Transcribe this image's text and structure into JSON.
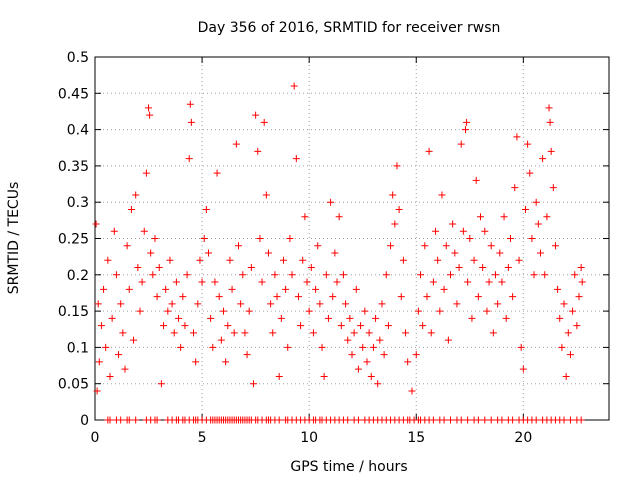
{
  "chart_data": {
    "type": "scatter",
    "title": "Day 356 of 2016, SRMTID for receiver rwsn",
    "xlabel": "GPS time / hours",
    "ylabel": "SRMTID / TECUs",
    "xlim": [
      0,
      24
    ],
    "ylim": [
      0,
      0.5
    ],
    "xticks": [
      0,
      5,
      10,
      15,
      20
    ],
    "xtick_labels": [
      "0",
      "5",
      "10",
      "15",
      "20"
    ],
    "yticks": [
      0,
      0.05,
      0.1,
      0.15,
      0.2,
      0.25,
      0.3,
      0.35,
      0.4,
      0.45,
      0.5
    ],
    "ytick_labels": [
      "0",
      "0.05",
      "0.1",
      "0.15",
      "0.2",
      "0.25",
      "0.3",
      "0.35",
      "0.4",
      "0.45",
      "0.5"
    ],
    "grid": true,
    "marker": "+",
    "color": "#ff0000",
    "series": [
      {
        "name": "SRMTID",
        "points": [
          [
            0.05,
            0.27
          ],
          [
            0.1,
            0.04
          ],
          [
            0.15,
            0.16
          ],
          [
            0.2,
            0.08
          ],
          [
            0.3,
            0.13
          ],
          [
            0.4,
            0.18
          ],
          [
            0.5,
            0.1
          ],
          [
            0.6,
            0.22
          ],
          [
            0.7,
            0.06
          ],
          [
            0.8,
            0.14
          ],
          [
            0.9,
            0.26
          ],
          [
            1.0,
            0.2
          ],
          [
            1.1,
            0.09
          ],
          [
            1.2,
            0.16
          ],
          [
            1.3,
            0.12
          ],
          [
            1.4,
            0.07
          ],
          [
            1.5,
            0.24
          ],
          [
            1.6,
            0.18
          ],
          [
            1.7,
            0.29
          ],
          [
            1.8,
            0.11
          ],
          [
            1.9,
            0.31
          ],
          [
            2.0,
            0.21
          ],
          [
            2.1,
            0.15
          ],
          [
            2.2,
            0.19
          ],
          [
            2.3,
            0.26
          ],
          [
            2.4,
            0.34
          ],
          [
            2.5,
            0.43
          ],
          [
            2.55,
            0.42
          ],
          [
            2.6,
            0.23
          ],
          [
            2.7,
            0.2
          ],
          [
            2.8,
            0.25
          ],
          [
            2.9,
            0.17
          ],
          [
            3.0,
            0.21
          ],
          [
            3.1,
            0.05
          ],
          [
            3.2,
            0.13
          ],
          [
            3.3,
            0.18
          ],
          [
            3.4,
            0.15
          ],
          [
            3.5,
            0.22
          ],
          [
            3.6,
            0.16
          ],
          [
            3.7,
            0.12
          ],
          [
            3.8,
            0.19
          ],
          [
            3.9,
            0.14
          ],
          [
            4.0,
            0.1
          ],
          [
            4.1,
            0.17
          ],
          [
            4.2,
            0.13
          ],
          [
            4.3,
            0.2
          ],
          [
            4.4,
            0.36
          ],
          [
            4.45,
            0.435
          ],
          [
            4.5,
            0.41
          ],
          [
            4.6,
            0.12
          ],
          [
            4.7,
            0.08
          ],
          [
            4.8,
            0.16
          ],
          [
            4.9,
            0.22
          ],
          [
            5.0,
            0.19
          ],
          [
            5.1,
            0.25
          ],
          [
            5.2,
            0.29
          ],
          [
            5.3,
            0.23
          ],
          [
            5.4,
            0.14
          ],
          [
            5.5,
            0.1
          ],
          [
            5.6,
            0.19
          ],
          [
            5.7,
            0.34
          ],
          [
            5.8,
            0.17
          ],
          [
            5.9,
            0.11
          ],
          [
            6.0,
            0.15
          ],
          [
            6.1,
            0.08
          ],
          [
            6.2,
            0.13
          ],
          [
            6.3,
            0.22
          ],
          [
            6.4,
            0.18
          ],
          [
            6.5,
            0.12
          ],
          [
            6.6,
            0.38
          ],
          [
            6.7,
            0.24
          ],
          [
            6.8,
            0.16
          ],
          [
            6.9,
            0.2
          ],
          [
            7.0,
            0.12
          ],
          [
            7.1,
            0.09
          ],
          [
            7.2,
            0.15
          ],
          [
            7.3,
            0.21
          ],
          [
            7.4,
            0.05
          ],
          [
            7.5,
            0.42
          ],
          [
            7.6,
            0.37
          ],
          [
            7.7,
            0.25
          ],
          [
            7.8,
            0.19
          ],
          [
            7.9,
            0.41
          ],
          [
            8.0,
            0.31
          ],
          [
            8.1,
            0.23
          ],
          [
            8.2,
            0.16
          ],
          [
            8.3,
            0.12
          ],
          [
            8.4,
            0.2
          ],
          [
            8.5,
            0.17
          ],
          [
            8.6,
            0.06
          ],
          [
            8.7,
            0.14
          ],
          [
            8.8,
            0.22
          ],
          [
            8.9,
            0.18
          ],
          [
            9.0,
            0.1
          ],
          [
            9.1,
            0.25
          ],
          [
            9.2,
            0.2
          ],
          [
            9.3,
            0.46
          ],
          [
            9.4,
            0.36
          ],
          [
            9.5,
            0.17
          ],
          [
            9.6,
            0.13
          ],
          [
            9.7,
            0.22
          ],
          [
            9.8,
            0.28
          ],
          [
            9.9,
            0.19
          ],
          [
            10.0,
            0.15
          ],
          [
            10.1,
            0.21
          ],
          [
            10.2,
            0.12
          ],
          [
            10.3,
            0.18
          ],
          [
            10.4,
            0.24
          ],
          [
            10.5,
            0.16
          ],
          [
            10.6,
            0.1
          ],
          [
            10.7,
            0.06
          ],
          [
            10.8,
            0.2
          ],
          [
            10.9,
            0.14
          ],
          [
            11.0,
            0.3
          ],
          [
            11.1,
            0.17
          ],
          [
            11.2,
            0.23
          ],
          [
            11.3,
            0.19
          ],
          [
            11.4,
            0.28
          ],
          [
            11.5,
            0.13
          ],
          [
            11.6,
            0.2
          ],
          [
            11.7,
            0.16
          ],
          [
            11.8,
            0.11
          ],
          [
            11.9,
            0.14
          ],
          [
            12.0,
            0.09
          ],
          [
            12.1,
            0.12
          ],
          [
            12.2,
            0.18
          ],
          [
            12.3,
            0.07
          ],
          [
            12.4,
            0.13
          ],
          [
            12.5,
            0.1
          ],
          [
            12.6,
            0.15
          ],
          [
            12.7,
            0.08
          ],
          [
            12.8,
            0.12
          ],
          [
            12.9,
            0.06
          ],
          [
            13.0,
            0.1
          ],
          [
            13.1,
            0.14
          ],
          [
            13.2,
            0.05
          ],
          [
            13.3,
            0.11
          ],
          [
            13.4,
            0.16
          ],
          [
            13.5,
            0.09
          ],
          [
            13.6,
            0.2
          ],
          [
            13.7,
            0.13
          ],
          [
            13.8,
            0.24
          ],
          [
            13.9,
            0.31
          ],
          [
            14.0,
            0.27
          ],
          [
            14.1,
            0.35
          ],
          [
            14.2,
            0.29
          ],
          [
            14.3,
            0.17
          ],
          [
            14.4,
            0.22
          ],
          [
            14.5,
            0.12
          ],
          [
            14.6,
            0.08
          ],
          [
            14.8,
            0.04
          ],
          [
            15.0,
            0.09
          ],
          [
            15.1,
            0.15
          ],
          [
            15.2,
            0.2
          ],
          [
            15.3,
            0.13
          ],
          [
            15.4,
            0.24
          ],
          [
            15.5,
            0.17
          ],
          [
            15.6,
            0.37
          ],
          [
            15.7,
            0.12
          ],
          [
            15.8,
            0.19
          ],
          [
            15.9,
            0.26
          ],
          [
            16.0,
            0.22
          ],
          [
            16.1,
            0.15
          ],
          [
            16.2,
            0.31
          ],
          [
            16.3,
            0.18
          ],
          [
            16.4,
            0.24
          ],
          [
            16.5,
            0.11
          ],
          [
            16.6,
            0.2
          ],
          [
            16.7,
            0.27
          ],
          [
            16.8,
            0.23
          ],
          [
            16.9,
            0.16
          ],
          [
            17.0,
            0.21
          ],
          [
            17.1,
            0.38
          ],
          [
            17.2,
            0.26
          ],
          [
            17.3,
            0.4
          ],
          [
            17.35,
            0.41
          ],
          [
            17.4,
            0.19
          ],
          [
            17.5,
            0.25
          ],
          [
            17.6,
            0.14
          ],
          [
            17.7,
            0.22
          ],
          [
            17.8,
            0.33
          ],
          [
            17.9,
            0.17
          ],
          [
            18.0,
            0.28
          ],
          [
            18.1,
            0.21
          ],
          [
            18.2,
            0.26
          ],
          [
            18.3,
            0.15
          ],
          [
            18.4,
            0.19
          ],
          [
            18.5,
            0.24
          ],
          [
            18.6,
            0.12
          ],
          [
            18.7,
            0.2
          ],
          [
            18.8,
            0.16
          ],
          [
            18.9,
            0.23
          ],
          [
            19.0,
            0.19
          ],
          [
            19.1,
            0.28
          ],
          [
            19.2,
            0.14
          ],
          [
            19.3,
            0.21
          ],
          [
            19.4,
            0.25
          ],
          [
            19.5,
            0.17
          ],
          [
            19.6,
            0.32
          ],
          [
            19.7,
            0.39
          ],
          [
            19.8,
            0.22
          ],
          [
            19.9,
            0.1
          ],
          [
            20.0,
            0.07
          ],
          [
            20.1,
            0.29
          ],
          [
            20.2,
            0.38
          ],
          [
            20.3,
            0.34
          ],
          [
            20.4,
            0.25
          ],
          [
            20.5,
            0.2
          ],
          [
            20.6,
            0.3
          ],
          [
            20.7,
            0.27
          ],
          [
            20.8,
            0.23
          ],
          [
            20.9,
            0.36
          ],
          [
            21.0,
            0.2
          ],
          [
            21.1,
            0.28
          ],
          [
            21.2,
            0.43
          ],
          [
            21.25,
            0.41
          ],
          [
            21.3,
            0.37
          ],
          [
            21.4,
            0.32
          ],
          [
            21.5,
            0.24
          ],
          [
            21.6,
            0.18
          ],
          [
            21.7,
            0.14
          ],
          [
            21.8,
            0.1
          ],
          [
            21.9,
            0.16
          ],
          [
            22.0,
            0.06
          ],
          [
            22.1,
            0.12
          ],
          [
            22.2,
            0.09
          ],
          [
            22.3,
            0.15
          ],
          [
            22.4,
            0.2
          ],
          [
            22.5,
            0.13
          ],
          [
            22.6,
            0.17
          ],
          [
            22.7,
            0.21
          ],
          [
            22.75,
            0.19
          ]
        ],
        "zero_points_x": [
          0.6,
          0.7,
          1.0,
          1.2,
          1.5,
          1.6,
          1.9,
          2.4,
          2.6,
          2.8,
          2.9,
          3.4,
          3.6,
          3.8,
          3.9,
          4.1,
          4.2,
          4.4,
          4.6,
          4.7,
          4.8,
          5.0,
          5.2,
          5.4,
          5.5,
          5.6,
          5.7,
          5.8,
          5.9,
          6.0,
          6.1,
          6.2,
          6.3,
          6.4,
          6.5,
          6.6,
          6.7,
          6.8,
          6.9,
          7.0,
          7.1,
          7.2,
          7.3,
          7.5,
          7.6,
          7.8,
          8.0,
          8.1,
          8.2,
          8.4,
          8.6,
          8.9,
          9.0,
          9.2,
          9.4,
          9.6,
          9.8,
          10.0,
          10.2,
          10.3,
          10.5,
          10.6,
          10.8,
          11.0,
          11.2,
          11.4,
          11.6,
          11.8,
          12.1,
          12.3,
          12.6,
          12.8,
          13.0,
          13.2,
          13.4,
          13.6,
          13.8,
          14.0,
          14.2,
          14.4,
          14.6,
          14.7,
          14.9,
          15.1,
          15.2,
          15.4,
          15.6,
          15.8,
          16.1,
          16.3,
          16.6,
          16.9,
          17.1,
          17.4,
          17.7,
          17.9,
          18.2,
          18.5,
          18.8,
          19.0,
          19.3,
          19.5,
          19.8,
          20.0,
          20.2,
          20.4,
          20.6,
          20.9,
          21.1,
          21.3,
          21.5,
          21.7,
          21.9,
          22.2,
          22.5,
          22.7
        ]
      }
    ]
  }
}
